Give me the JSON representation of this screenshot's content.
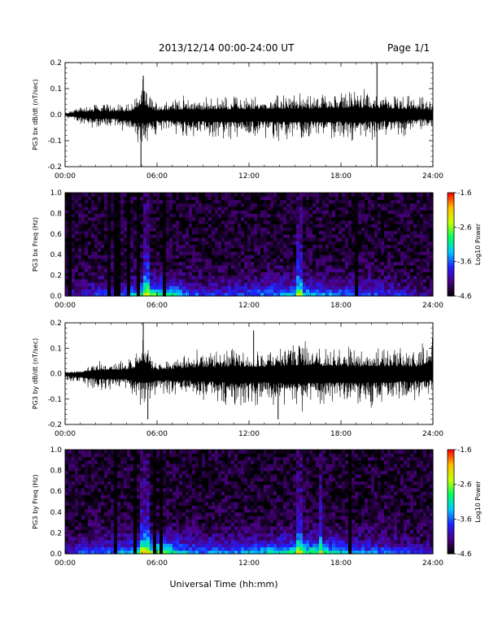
{
  "header": {
    "date_range": "2013/12/14  00:00-24:00 UT",
    "page": "Page 1/1"
  },
  "xaxis": {
    "title": "Universal Time (hh:mm)",
    "range_hours": [
      0,
      24
    ]
  },
  "colorbar": {
    "label": "Log10 Power",
    "tick_labels": [
      "-1.6",
      "-2.6",
      "-3.6",
      "-4.6"
    ],
    "range": [
      -4.6,
      -1.6
    ],
    "colormap": [
      "#000000",
      "#4b0082",
      "#2020ff",
      "#00c8ff",
      "#00ff60",
      "#c8ff00",
      "#ffc000",
      "#ff0000"
    ]
  },
  "chart_data": [
    {
      "type": "line",
      "id": "bx-waveform",
      "ylabel": "PG3 bx dB/dt (nT/sec)",
      "x_tick_labels": [
        "00:00",
        "06:00",
        "12:00",
        "18:00",
        "24:00"
      ],
      "y_tick_labels": [
        "-0.2",
        "-0.1",
        "0.0",
        "0.1",
        "0.2"
      ],
      "xlim_hours": [
        0,
        24
      ],
      "ylim": [
        -0.2,
        0.2
      ],
      "series": [
        {
          "envelope_hours": [
            0,
            1,
            2,
            3,
            4,
            4.5,
            5,
            5.5,
            6,
            7,
            8,
            9,
            10,
            11,
            12,
            13,
            14,
            15,
            16,
            17,
            18,
            19,
            20,
            21,
            22,
            23,
            24
          ],
          "upper": [
            0.01,
            0.04,
            0.05,
            0.05,
            0.05,
            0.07,
            0.15,
            0.09,
            0.06,
            0.07,
            0.08,
            0.07,
            0.08,
            0.08,
            0.08,
            0.08,
            0.09,
            0.09,
            0.09,
            0.09,
            0.1,
            0.11,
            0.1,
            0.09,
            0.08,
            0.08,
            0.06
          ],
          "lower": [
            -0.01,
            -0.04,
            -0.06,
            -0.06,
            -0.07,
            -0.1,
            -0.13,
            -0.11,
            -0.09,
            -0.09,
            -0.1,
            -0.1,
            -0.11,
            -0.11,
            -0.1,
            -0.1,
            -0.11,
            -0.11,
            -0.1,
            -0.11,
            -0.1,
            -0.12,
            -0.1,
            -0.09,
            -0.09,
            -0.07,
            -0.06
          ],
          "spikes": [
            {
              "hour": 4.95,
              "value": -0.2
            },
            {
              "hour": 5.1,
              "value": 0.15
            },
            {
              "hour": 20.35,
              "value": 0.2
            },
            {
              "hour": 20.35,
              "value": -0.2
            }
          ]
        }
      ]
    },
    {
      "type": "heatmap",
      "id": "bx-spectrogram",
      "ylabel": "PG3 bx Freq (Hz)",
      "x_tick_labels": [
        "00:00",
        "06:00",
        "12:00",
        "18:00",
        "24:00"
      ],
      "y_tick_labels": [
        "0.0",
        "0.2",
        "0.4",
        "0.6",
        "0.8",
        "1.0"
      ],
      "xlim_hours": [
        0,
        24
      ],
      "ylim": [
        0,
        1.0
      ],
      "value_range": [
        -4.6,
        -1.6
      ],
      "low_freq_power_profile": [
        -4.2,
        -3.9,
        -3.6,
        -3.6,
        -3.4,
        -2.8,
        -2.5,
        -2.9,
        -3.4,
        -3.6,
        -3.6,
        -3.6,
        -3.5,
        -3.4,
        -3.2,
        -3.0,
        -3.1,
        -3.3,
        -3.4,
        -3.5,
        -3.6,
        -3.6,
        -3.8,
        -4.0,
        -4.2
      ],
      "vertical_streaks_hours": [
        0.3,
        2.9,
        3.4,
        4.1,
        4.7,
        5.2,
        5.5,
        6.5,
        15.3,
        19.1
      ],
      "bright_streaks_hours": [
        5.2,
        5.5,
        15.3
      ]
    },
    {
      "type": "line",
      "id": "by-waveform",
      "ylabel": "PG3 by dB/dt (nT/sec)",
      "x_tick_labels": [
        "00:00",
        "06:00",
        "12:00",
        "18:00",
        "24:00"
      ],
      "y_tick_labels": [
        "-0.2",
        "-0.1",
        "0.0",
        "0.1",
        "0.2"
      ],
      "xlim_hours": [
        0,
        24
      ],
      "ylim": [
        -0.2,
        0.2
      ],
      "series": [
        {
          "envelope_hours": [
            0,
            1,
            2,
            3,
            4,
            4.5,
            5,
            5.5,
            6,
            7,
            8,
            9,
            10,
            11,
            12,
            13,
            14,
            15,
            16,
            17,
            18,
            19,
            20,
            21,
            22,
            23,
            24
          ],
          "upper": [
            0.01,
            0.02,
            0.05,
            0.06,
            0.06,
            0.08,
            0.2,
            0.09,
            0.06,
            0.07,
            0.09,
            0.1,
            0.1,
            0.11,
            0.11,
            0.1,
            0.12,
            0.13,
            0.13,
            0.12,
            0.12,
            0.11,
            0.12,
            0.11,
            0.11,
            0.11,
            0.2
          ],
          "lower": [
            -0.03,
            -0.05,
            -0.08,
            -0.08,
            -0.08,
            -0.1,
            -0.14,
            -0.13,
            -0.1,
            -0.1,
            -0.1,
            -0.12,
            -0.13,
            -0.15,
            -0.14,
            -0.13,
            -0.14,
            -0.16,
            -0.15,
            -0.14,
            -0.14,
            -0.13,
            -0.14,
            -0.13,
            -0.12,
            -0.12,
            -0.1
          ],
          "spikes": [
            {
              "hour": 5.1,
              "value": 0.2
            },
            {
              "hour": 5.4,
              "value": -0.18
            },
            {
              "hour": 12.3,
              "value": 0.17
            },
            {
              "hour": 13.9,
              "value": -0.18
            },
            {
              "hour": 24.0,
              "value": 0.2
            }
          ]
        }
      ]
    },
    {
      "type": "heatmap",
      "id": "by-spectrogram",
      "ylabel": "PG3 by Freq (Hz)",
      "x_tick_labels": [
        "00:00",
        "06:00",
        "12:00",
        "18:00",
        "24:00"
      ],
      "y_tick_labels": [
        "0.0",
        "0.2",
        "0.4",
        "0.6",
        "0.8",
        "1.0"
      ],
      "xlim_hours": [
        0,
        24
      ],
      "ylim": [
        0,
        1.0
      ],
      "value_range": [
        -4.6,
        -1.6
      ],
      "low_freq_power_profile": [
        -4.0,
        -3.6,
        -3.4,
        -3.4,
        -3.2,
        -2.7,
        -2.4,
        -2.8,
        -3.2,
        -3.4,
        -3.3,
        -3.3,
        -3.2,
        -3.1,
        -2.9,
        -2.7,
        -2.6,
        -2.8,
        -3.1,
        -3.3,
        -3.4,
        -3.5,
        -3.6,
        -3.8,
        -4.0
      ],
      "vertical_streaks_hours": [
        3.2,
        4.6,
        5.1,
        5.4,
        5.8,
        6.3,
        15.3,
        16.7,
        18.6
      ],
      "bright_streaks_hours": [
        5.1,
        5.4,
        15.3,
        16.7
      ]
    }
  ]
}
